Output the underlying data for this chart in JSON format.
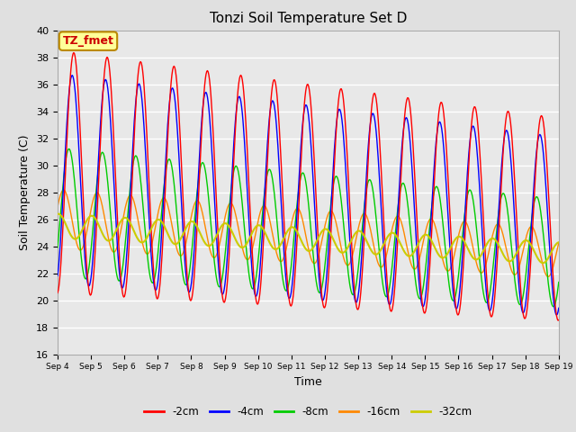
{
  "title": "Tonzi Soil Temperature Set D",
  "xlabel": "Time",
  "ylabel": "Soil Temperature (C)",
  "ylim": [
    16,
    40
  ],
  "series_colors": {
    "-2cm": "#FF0000",
    "-4cm": "#0000FF",
    "-8cm": "#00CC00",
    "-16cm": "#FF8800",
    "-32cm": "#CCCC00"
  },
  "legend_labels": [
    "-2cm",
    "-4cm",
    "-8cm",
    "-16cm",
    "-32cm"
  ],
  "legend_colors": [
    "#FF0000",
    "#0000FF",
    "#00CC00",
    "#FF8800",
    "#CCCC00"
  ],
  "annotation_text": "TZ_fmet",
  "annotation_bg": "#FFFF99",
  "annotation_border": "#BB8800",
  "fig_bg_color": "#E0E0E0",
  "ax_bg_color": "#E8E8E8",
  "grid_color": "#FFFFFF",
  "xtick_labels": [
    "Sep 4",
    "Sep 5",
    "Sep 6",
    "Sep 7",
    "Sep 8",
    "Sep 9",
    "Sep 10",
    "Sep 11",
    "Sep 12",
    "Sep 13",
    "Sep 14",
    "Sep 15",
    "Sep 16",
    "Sep 17",
    "Sep 18",
    "Sep 19"
  ],
  "ytick_values": [
    16,
    18,
    20,
    22,
    24,
    26,
    28,
    30,
    32,
    34,
    36,
    38,
    40
  ]
}
